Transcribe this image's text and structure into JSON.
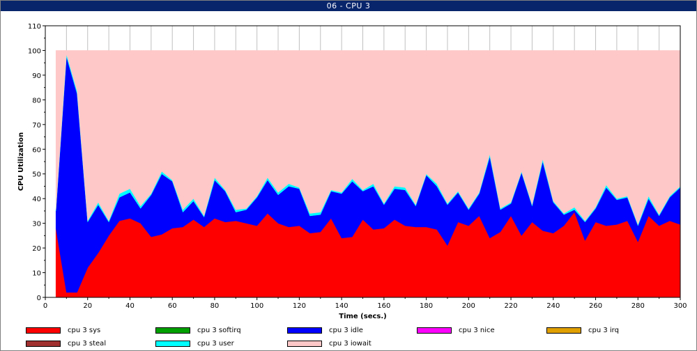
{
  "window": {
    "title": "06 - CPU 3"
  },
  "chart_data": {
    "type": "area",
    "stacked": true,
    "xlabel": "Time (secs.)",
    "ylabel": "CPU Utilization",
    "xlim": [
      0,
      300
    ],
    "ylim": [
      0,
      110
    ],
    "xticks": [
      0,
      20,
      40,
      60,
      80,
      100,
      120,
      140,
      160,
      180,
      200,
      220,
      240,
      260,
      280,
      300
    ],
    "yticks": [
      0,
      10,
      20,
      30,
      40,
      50,
      60,
      70,
      80,
      90,
      100,
      110
    ],
    "grid": true,
    "legend_position": "bottom",
    "x": [
      5,
      10,
      15,
      20,
      25,
      30,
      35,
      40,
      45,
      50,
      55,
      60,
      65,
      70,
      75,
      80,
      85,
      90,
      95,
      100,
      105,
      110,
      115,
      120,
      125,
      130,
      135,
      140,
      145,
      150,
      155,
      160,
      165,
      170,
      175,
      180,
      185,
      190,
      195,
      200,
      205,
      210,
      215,
      220,
      225,
      230,
      235,
      240,
      245,
      250,
      255,
      260,
      265,
      270,
      275,
      280,
      285,
      290,
      295,
      300
    ],
    "series": [
      {
        "name": "cpu 3 sys",
        "color": "#ff0000",
        "values": [
          28,
          2,
          2,
          12,
          18,
          25,
          31,
          32,
          30,
          24.5,
          25.5,
          28,
          28.5,
          31.5,
          28.5,
          32,
          30.5,
          31,
          30,
          29,
          34,
          30,
          28.5,
          29,
          26,
          26.5,
          32,
          24,
          24.5,
          31.5,
          27.5,
          28,
          31.5,
          29,
          28.5,
          28.5,
          27.5,
          21,
          30.5,
          29,
          33,
          24,
          26.5,
          33,
          25,
          30.5,
          27,
          26,
          29,
          34.5,
          23,
          30.5,
          29,
          29.5,
          31,
          22.5,
          33,
          29,
          31,
          29.5
        ]
      },
      {
        "name": "cpu 3 softirq",
        "color": "#00a000",
        "values": [
          0,
          0,
          0,
          0,
          0,
          0,
          0,
          0,
          0,
          0,
          0,
          0,
          0,
          0,
          0,
          0,
          0,
          0,
          0,
          0,
          0,
          0,
          0,
          0,
          0,
          0,
          0,
          0,
          0,
          0,
          0,
          0,
          0,
          0,
          0,
          0,
          0,
          0,
          0,
          0,
          0,
          0,
          0,
          0,
          0,
          0,
          0,
          0,
          0,
          0,
          0,
          0,
          0,
          0,
          0,
          0,
          0,
          0,
          0,
          0
        ]
      },
      {
        "name": "cpu 3 idle",
        "color": "#0000ff",
        "values": [
          7,
          95.5,
          80.5,
          18.5,
          19.5,
          5.5,
          9.5,
          10.5,
          6,
          17,
          24.5,
          19,
          6,
          7.5,
          4,
          15.5,
          12.5,
          3.5,
          5.5,
          11.5,
          13.5,
          11.5,
          16.5,
          15,
          7,
          7,
          11,
          18,
          22.5,
          11.5,
          17.5,
          9.5,
          12.5,
          14.5,
          8.5,
          21,
          17.5,
          16.5,
          12,
          6.5,
          9,
          33,
          9,
          5,
          25.5,
          6.5,
          28,
          12.5,
          4.5,
          1,
          7.5,
          5.5,
          15.5,
          10,
          9.5,
          6.5,
          7,
          4,
          9.5,
          15
        ]
      },
      {
        "name": "cpu 3 nice",
        "color": "#ff00ff",
        "values": [
          0,
          0,
          0,
          0,
          0,
          0,
          0,
          0,
          0,
          0,
          0,
          0,
          0,
          0,
          0,
          0,
          0,
          0,
          0,
          0,
          0,
          0,
          0,
          0,
          0,
          0,
          0,
          0,
          0,
          0,
          0,
          0,
          0,
          0,
          0,
          0,
          0,
          0,
          0,
          0,
          0,
          0,
          0,
          0,
          0,
          0,
          0,
          0,
          0,
          0,
          0,
          0,
          0,
          0,
          0,
          0,
          0,
          0,
          0,
          0
        ]
      },
      {
        "name": "cpu 3 irq",
        "color": "#e0a000",
        "values": [
          0,
          0,
          0,
          0,
          0,
          0,
          0,
          0,
          0,
          0,
          0,
          0,
          0,
          0,
          0,
          0,
          0,
          0,
          0,
          0,
          0,
          0,
          0,
          0,
          0,
          0,
          0,
          0,
          0,
          0,
          0,
          0,
          0,
          0,
          0,
          0,
          0,
          0,
          0,
          0,
          0,
          0,
          0,
          0,
          0,
          0,
          0,
          0,
          0,
          0,
          0,
          0,
          0,
          0,
          0,
          0,
          0,
          0,
          0,
          0
        ]
      },
      {
        "name": "cpu 3 steal",
        "color": "#a03030",
        "values": [
          0,
          0,
          0,
          0,
          0,
          0,
          0,
          0,
          0,
          0,
          0,
          0,
          0,
          0,
          0,
          0,
          0,
          0,
          0,
          0,
          0,
          0,
          0,
          0,
          0,
          0,
          0,
          0,
          0,
          0,
          0,
          0,
          0,
          0,
          0,
          0,
          0,
          0,
          0,
          0,
          0,
          0,
          0,
          0,
          0,
          0,
          0,
          0,
          0,
          0,
          0,
          0,
          0,
          0,
          0,
          0,
          0,
          0,
          0,
          0
        ]
      },
      {
        "name": "cpu 3 user",
        "color": "#00ffff",
        "values": [
          0.5,
          1,
          1,
          0.5,
          1,
          0.5,
          1.5,
          1.5,
          1,
          0.5,
          1,
          0.5,
          1,
          1,
          0.5,
          1,
          0.5,
          1,
          0.5,
          0.5,
          1,
          1,
          1,
          0.5,
          1,
          1,
          0.5,
          0.5,
          1,
          0.5,
          1,
          0.5,
          1,
          1,
          0.5,
          0.5,
          1,
          0.5,
          0.5,
          0.5,
          0.5,
          1,
          0.5,
          0.5,
          0.5,
          0.5,
          1,
          0.5,
          0.5,
          1,
          0.5,
          0.5,
          1,
          0.5,
          0.5,
          0.5,
          1,
          0.5,
          0.5,
          0.5
        ]
      },
      {
        "name": "cpu 3 iowait",
        "color": "#ffc8c8",
        "values": [
          64.5,
          1.5,
          16.5,
          69,
          61.5,
          69,
          58,
          56,
          63,
          58,
          49,
          52.5,
          64.5,
          60,
          67,
          51.5,
          56.5,
          64.5,
          64,
          59,
          51.5,
          57.5,
          54,
          55.5,
          66,
          65.5,
          56.5,
          57.5,
          52,
          56.5,
          54,
          62,
          55,
          55.5,
          62.5,
          50,
          54,
          62,
          57,
          64,
          57.5,
          42,
          64,
          61.5,
          49,
          62.5,
          44,
          61,
          66,
          63.5,
          69,
          63.5,
          54.5,
          60,
          59,
          70.5,
          59,
          66.5,
          59,
          55
        ]
      }
    ],
    "legend_order": [
      "cpu 3 sys",
      "cpu 3 softirq",
      "cpu 3 idle",
      "cpu 3 nice",
      "cpu 3 irq",
      "cpu 3 steal",
      "cpu 3 user",
      "cpu 3 iowait"
    ]
  }
}
